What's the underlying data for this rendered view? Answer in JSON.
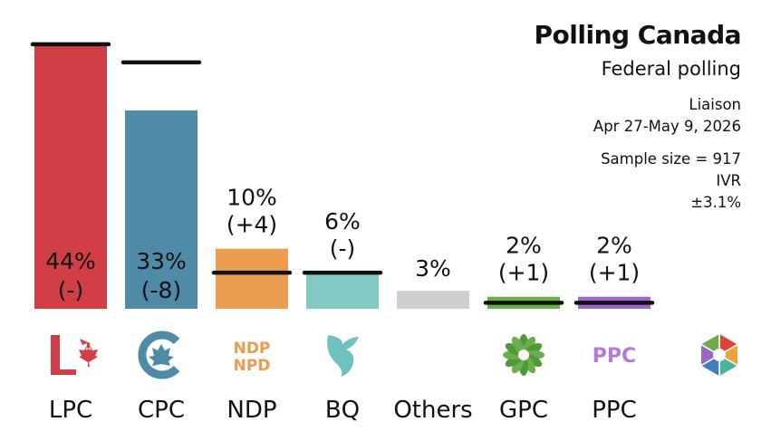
{
  "header": {
    "title": "Polling Canada",
    "subtitle": "Federal polling",
    "pollster": "Liaison",
    "dates": "Apr 27-May 9, 2026",
    "sample": "Sample size = 917",
    "method": "IVR",
    "margin": "±3.1%"
  },
  "chart_data": {
    "type": "bar",
    "categories": [
      "LPC",
      "CPC",
      "NDP",
      "BQ",
      "Others",
      "GPC",
      "PPC"
    ],
    "values": [
      44,
      33,
      10,
      6,
      3,
      2,
      2
    ],
    "change_labels": [
      "(-)",
      "(-8)",
      "(+4)",
      "(-)",
      "",
      "(+1)",
      "(+1)"
    ],
    "previous_values": [
      44,
      41,
      6,
      6,
      null,
      1,
      1
    ],
    "colors": [
      "#d13f46",
      "#4f8aa6",
      "#eb9c4f",
      "#82c8c3",
      "#cfcfcf",
      "#6cae4b",
      "#9b67c7"
    ],
    "icons": [
      "lpc-maple-leaf-logo",
      "cpc-logo",
      "ndp-logo",
      "bq-logo",
      "",
      "gpc-logo",
      "ppc-logo",
      "polling-canada-logo"
    ],
    "ndp_logo_text": [
      "NDP",
      "NPD"
    ],
    "ppc_logo_text": "PPC",
    "ylim": [
      0,
      47
    ],
    "xlabel": "",
    "ylabel": "",
    "grid": false
  }
}
